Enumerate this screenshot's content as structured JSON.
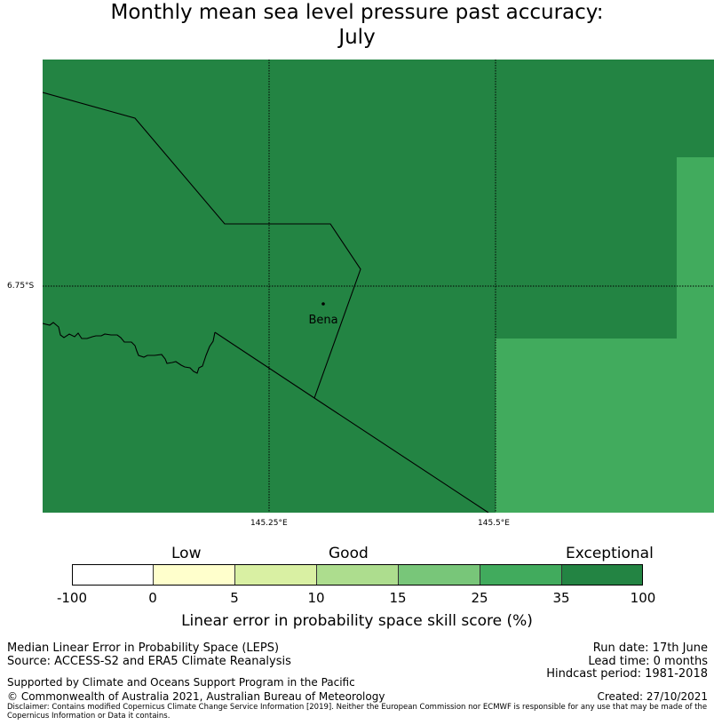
{
  "title_line1": "Monthly mean sea level pressure past accuracy:",
  "title_line2": "July",
  "map": {
    "lon_labels": [
      "145.25°E",
      "145.5°E"
    ],
    "lat_label": "6.75°S",
    "town": "Bena",
    "colors": {
      "dark_green": "#238443",
      "medium_green": "#41ab5d"
    }
  },
  "colorbar": {
    "category_labels": {
      "low": "Low",
      "good": "Good",
      "exceptional": "Exceptional"
    },
    "ticks": [
      "-100",
      "0",
      "5",
      "10",
      "15",
      "25",
      "35",
      "100"
    ],
    "colors": [
      "#ffffff",
      "#ffffcc",
      "#d9f0a3",
      "#addd8e",
      "#78c679",
      "#41ab5d",
      "#238443"
    ],
    "label": "Linear error in probability space skill score (%)"
  },
  "footer": {
    "left1": "Median Linear Error in Probability Space (LEPS)",
    "left2": "Source: ACCESS-S2 and ERA5 Climate Reanalysis",
    "support": "Supported by Climate and Oceans Support Program in the Pacific",
    "copyright": "© Commonwealth of Australia 2021, Australian Bureau of Meteorology",
    "run_date": "Run date: 17th June",
    "lead_time": "Lead time: 0 months",
    "hindcast": "Hindcast period: 1981-2018",
    "created": "Created: 27/10/2021",
    "disclaimer": "Disclaimer: Contains modified Copernicus Climate Change Service Information [2019]. Neither the European Commission nor ECMWF is responsible for any use that may be made of the Copernicus Information or Data it contains."
  }
}
